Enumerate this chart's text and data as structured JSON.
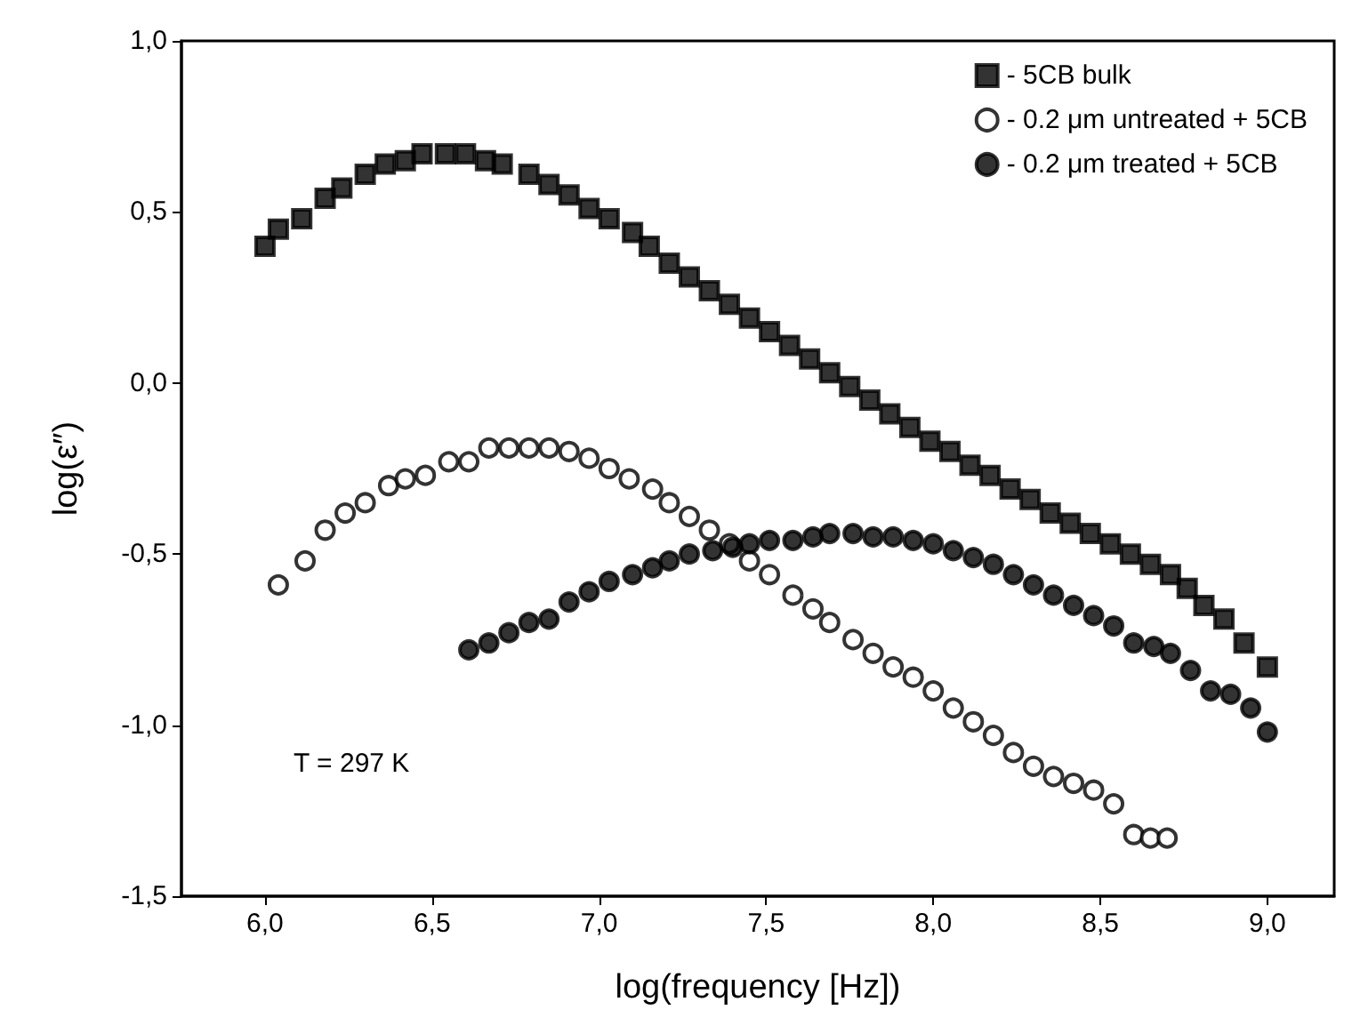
{
  "chart_data": {
    "type": "scatter",
    "xlabel": "log(frequency [Hz])",
    "ylabel": "log(ε″)",
    "xlim": [
      5.75,
      9.2
    ],
    "ylim": [
      -1.5,
      1.0
    ],
    "xticks": [
      {
        "value": 6,
        "label": "6,0"
      },
      {
        "value": 6.5,
        "label": "6,5"
      },
      {
        "value": 7,
        "label": "7,0"
      },
      {
        "value": 7.5,
        "label": "7,5"
      },
      {
        "value": 8,
        "label": "8,0"
      },
      {
        "value": 8.5,
        "label": "8,5"
      },
      {
        "value": 9,
        "label": "9,0"
      }
    ],
    "yticks": [
      {
        "value": -1.5,
        "label": "-1,5"
      },
      {
        "value": -1,
        "label": "-1,0"
      },
      {
        "value": -0.5,
        "label": "-0,5"
      },
      {
        "value": 0,
        "label": "0,0"
      },
      {
        "value": 0.5,
        "label": "0,5"
      },
      {
        "value": 1,
        "label": "1,0"
      }
    ],
    "grid": false,
    "legend": "top right",
    "annotations": [
      "T = 297 K"
    ],
    "series": [
      {
        "name": "- 5CB bulk",
        "color": "#000000",
        "marker": "square",
        "x": [
          6.0,
          6.04,
          6.11,
          6.18,
          6.23,
          6.3,
          6.36,
          6.42,
          6.47,
          6.54,
          6.6,
          6.66,
          6.71,
          6.79,
          6.85,
          6.91,
          6.97,
          7.03,
          7.1,
          7.15,
          7.21,
          7.27,
          7.33,
          7.39,
          7.45,
          7.51,
          7.57,
          7.63,
          7.69,
          7.75,
          7.81,
          7.87,
          7.93,
          7.99,
          8.05,
          8.11,
          8.17,
          8.23,
          8.29,
          8.35,
          8.41,
          8.47,
          8.53,
          8.59,
          8.65,
          8.71,
          8.76,
          8.81,
          8.87,
          8.93,
          9.0
        ],
        "values": [
          0.4,
          0.45,
          0.48,
          0.54,
          0.57,
          0.61,
          0.64,
          0.65,
          0.67,
          0.67,
          0.67,
          0.65,
          0.64,
          0.61,
          0.58,
          0.55,
          0.51,
          0.48,
          0.44,
          0.4,
          0.35,
          0.31,
          0.27,
          0.23,
          0.19,
          0.15,
          0.11,
          0.07,
          0.03,
          -0.01,
          -0.05,
          -0.09,
          -0.13,
          -0.17,
          -0.2,
          -0.24,
          -0.27,
          -0.31,
          -0.34,
          -0.38,
          -0.41,
          -0.44,
          -0.47,
          -0.5,
          -0.53,
          -0.56,
          -0.6,
          -0.65,
          -0.69,
          -0.76,
          -0.83
        ]
      },
      {
        "name": "- 0.2 μm untreated + 5CB",
        "color": "#ffffff",
        "marker": "circle",
        "x": [
          6.04,
          6.12,
          6.18,
          6.24,
          6.3,
          6.37,
          6.42,
          6.48,
          6.55,
          6.61,
          6.67,
          6.73,
          6.79,
          6.85,
          6.91,
          6.97,
          7.03,
          7.09,
          7.16,
          7.21,
          7.27,
          7.33,
          7.39,
          7.45,
          7.51,
          7.58,
          7.64,
          7.69,
          7.76,
          7.82,
          7.88,
          7.94,
          8.0,
          8.06,
          8.12,
          8.18,
          8.24,
          8.3,
          8.36,
          8.42,
          8.48,
          8.54,
          8.6,
          8.65,
          8.7
        ],
        "values": [
          -0.59,
          -0.52,
          -0.43,
          -0.38,
          -0.35,
          -0.3,
          -0.28,
          -0.27,
          -0.23,
          -0.23,
          -0.19,
          -0.19,
          -0.19,
          -0.19,
          -0.2,
          -0.22,
          -0.25,
          -0.28,
          -0.31,
          -0.35,
          -0.39,
          -0.43,
          -0.47,
          -0.52,
          -0.56,
          -0.62,
          -0.66,
          -0.7,
          -0.75,
          -0.79,
          -0.83,
          -0.86,
          -0.9,
          -0.95,
          -0.99,
          -1.03,
          -1.08,
          -1.12,
          -1.15,
          -1.17,
          -1.19,
          -1.23,
          -1.32,
          -1.33,
          -1.33
        ]
      },
      {
        "name": "- 0.2 μm treated + 5CB",
        "color": "#000000",
        "marker": "circle",
        "x": [
          6.61,
          6.67,
          6.73,
          6.79,
          6.85,
          6.91,
          6.97,
          7.03,
          7.1,
          7.16,
          7.21,
          7.27,
          7.34,
          7.4,
          7.45,
          7.51,
          7.58,
          7.64,
          7.69,
          7.76,
          7.82,
          7.88,
          7.94,
          8.0,
          8.06,
          8.12,
          8.18,
          8.24,
          8.3,
          8.36,
          8.42,
          8.48,
          8.54,
          8.6,
          8.66,
          8.71,
          8.77,
          8.83,
          8.89,
          8.95,
          9.0
        ],
        "values": [
          -0.78,
          -0.76,
          -0.73,
          -0.7,
          -0.69,
          -0.64,
          -0.61,
          -0.58,
          -0.56,
          -0.54,
          -0.52,
          -0.5,
          -0.49,
          -0.48,
          -0.47,
          -0.46,
          -0.46,
          -0.45,
          -0.44,
          -0.44,
          -0.45,
          -0.45,
          -0.46,
          -0.47,
          -0.49,
          -0.51,
          -0.53,
          -0.56,
          -0.59,
          -0.62,
          -0.65,
          -0.68,
          -0.71,
          -0.76,
          -0.77,
          -0.79,
          -0.84,
          -0.9,
          -0.91,
          -0.95,
          -1.02
        ]
      }
    ]
  }
}
